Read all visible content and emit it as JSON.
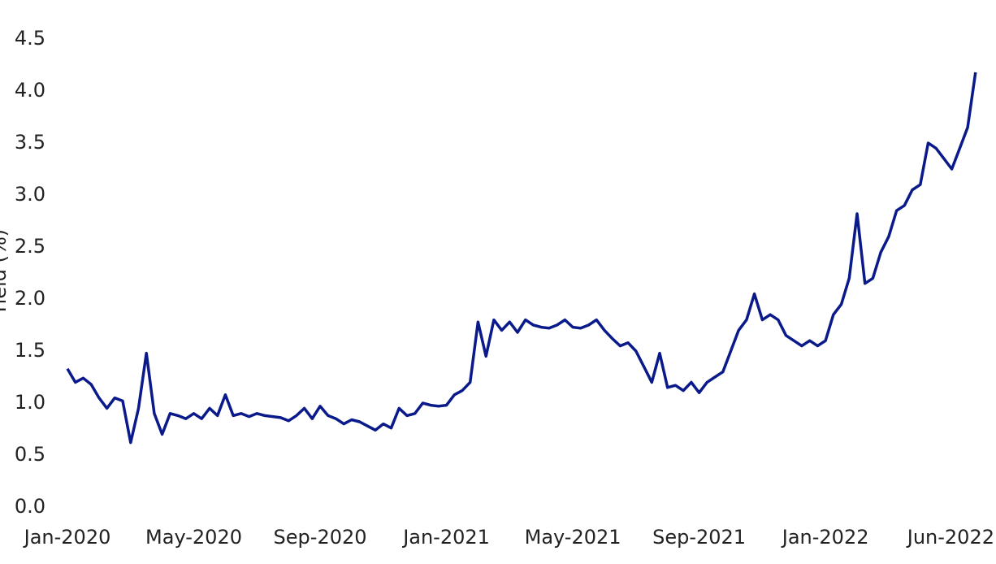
{
  "chart_data": {
    "type": "line",
    "y_label": "Yield (%)",
    "categories": [
      "Jan-2020",
      null,
      null,
      null,
      null,
      null,
      null,
      null,
      null,
      null,
      null,
      null,
      null,
      null,
      null,
      null,
      "May-2020",
      null,
      null,
      null,
      null,
      null,
      null,
      null,
      null,
      null,
      null,
      null,
      null,
      null,
      null,
      null,
      "Sep-2020",
      null,
      null,
      null,
      null,
      null,
      null,
      null,
      null,
      null,
      null,
      null,
      null,
      null,
      null,
      null,
      "Jan-2021",
      null,
      null,
      null,
      null,
      null,
      null,
      null,
      null,
      null,
      null,
      null,
      null,
      null,
      null,
      null,
      "May-2021",
      null,
      null,
      null,
      null,
      null,
      null,
      null,
      null,
      null,
      null,
      null,
      null,
      null,
      null,
      null,
      "Sep-2021",
      null,
      null,
      null,
      null,
      null,
      null,
      null,
      null,
      null,
      null,
      null,
      null,
      null,
      null,
      null,
      "Jan-2022",
      null,
      null,
      null,
      null,
      null,
      null,
      null,
      null,
      null,
      null,
      null,
      null,
      null,
      null,
      null,
      null,
      null,
      null,
      null,
      "Jun-2022"
    ],
    "series": [
      {
        "name": "Yield",
        "color": "#0b1a8a",
        "values": [
          1.33,
          1.2,
          1.24,
          1.18,
          1.05,
          0.95,
          1.05,
          1.02,
          0.62,
          0.95,
          1.48,
          0.9,
          0.7,
          0.9,
          0.88,
          0.85,
          0.9,
          0.85,
          0.95,
          0.88,
          1.08,
          0.88,
          0.9,
          0.87,
          0.9,
          0.88,
          0.87,
          0.86,
          0.83,
          0.88,
          0.95,
          0.85,
          0.97,
          0.88,
          0.85,
          0.8,
          0.84,
          0.82,
          0.78,
          0.74,
          0.8,
          0.76,
          0.95,
          0.88,
          0.9,
          1.0,
          0.98,
          0.97,
          0.98,
          1.08,
          1.12,
          1.2,
          1.78,
          1.45,
          1.8,
          1.7,
          1.78,
          1.68,
          1.8,
          1.75,
          1.73,
          1.72,
          1.75,
          1.8,
          1.73,
          1.72,
          1.75,
          1.8,
          1.7,
          1.62,
          1.55,
          1.58,
          1.5,
          1.35,
          1.2,
          1.48,
          1.15,
          1.17,
          1.12,
          1.2,
          1.1,
          1.2,
          1.25,
          1.3,
          1.5,
          1.7,
          1.8,
          2.05,
          1.8,
          1.85,
          1.8,
          1.65,
          1.6,
          1.55,
          1.6,
          1.55,
          1.6,
          1.85,
          1.95,
          2.2,
          2.82,
          2.15,
          2.2,
          2.45,
          2.6,
          2.85,
          2.9,
          3.05,
          3.1,
          3.5,
          3.45,
          3.35,
          3.25,
          3.45,
          3.65,
          4.18,
          null
        ]
      }
    ],
    "ylim": [
      0,
      4.5
    ],
    "yticks": [
      {
        "value": 0,
        "label": "0.0"
      },
      0.5,
      {
        "value": 1,
        "label": "1.0"
      },
      1.5,
      {
        "value": 2,
        "label": "2.0"
      },
      2.5,
      {
        "value": 3,
        "label": "3.0"
      },
      3.5,
      {
        "value": 4,
        "label": "4.0"
      },
      4.5
    ],
    "grid": false
  }
}
